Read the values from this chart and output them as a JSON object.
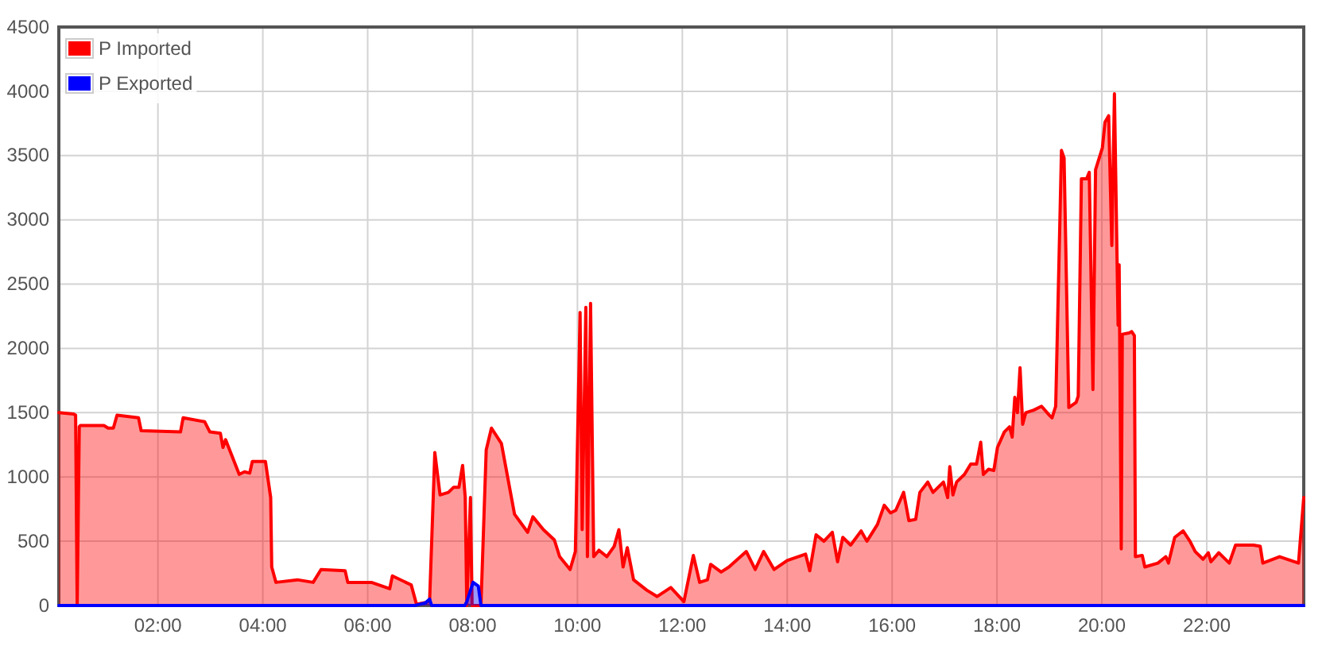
{
  "chart_data": {
    "type": "area",
    "xlim": [
      0.11,
      23.85
    ],
    "xticks": [
      {
        "value": 2,
        "label": "02:00"
      },
      {
        "value": 4,
        "label": "04:00"
      },
      {
        "value": 6,
        "label": "06:00"
      },
      {
        "value": 8,
        "label": "08:00"
      },
      {
        "value": 10,
        "label": "10:00"
      },
      {
        "value": 12,
        "label": "12:00"
      },
      {
        "value": 14,
        "label": "14:00"
      },
      {
        "value": 16,
        "label": "16:00"
      },
      {
        "value": 18,
        "label": "18:00"
      },
      {
        "value": 20,
        "label": "20:00"
      },
      {
        "value": 22,
        "label": "22:00"
      }
    ],
    "ylim": [
      0,
      4500
    ],
    "yticks": [
      0,
      500,
      1000,
      1500,
      2000,
      2500,
      3000,
      3500,
      4000,
      4500
    ],
    "grid": true,
    "legend": "top left",
    "marker": "none",
    "line_style": "solid",
    "series": [
      {
        "name": "P Imported",
        "color": "#ff0000",
        "x": [
          0.11,
          0.39,
          0.43,
          0.46,
          0.5,
          0.52,
          0.97,
          1.05,
          1.15,
          1.22,
          1.63,
          1.68,
          2.43,
          2.48,
          2.89,
          2.99,
          3.19,
          3.24,
          3.29,
          3.55,
          3.65,
          3.75,
          3.8,
          4.05,
          4.15,
          4.17,
          4.25,
          4.66,
          4.96,
          5.11,
          5.57,
          5.62,
          6.07,
          6.42,
          6.47,
          6.83,
          6.93,
          7.18,
          7.28,
          7.38,
          7.54,
          7.64,
          7.74,
          7.81,
          7.86,
          7.89,
          7.96,
          7.99,
          8.16,
          8.26,
          8.36,
          8.55,
          8.8,
          9.05,
          9.15,
          9.35,
          9.56,
          9.66,
          9.86,
          9.96,
          10.05,
          10.09,
          10.16,
          10.19,
          10.25,
          10.31,
          10.41,
          10.56,
          10.7,
          10.79,
          10.87,
          10.95,
          11.07,
          11.32,
          11.52,
          11.78,
          12.03,
          12.21,
          12.33,
          12.48,
          12.54,
          12.74,
          12.89,
          13.22,
          13.39,
          13.55,
          13.75,
          14.0,
          14.35,
          14.43,
          14.55,
          14.7,
          14.86,
          14.96,
          15.06,
          15.21,
          15.41,
          15.52,
          15.72,
          15.85,
          15.97,
          16.07,
          16.22,
          16.32,
          16.45,
          16.53,
          16.68,
          16.78,
          16.98,
          17.06,
          17.1,
          17.16,
          17.23,
          17.38,
          17.5,
          17.61,
          17.69,
          17.74,
          17.84,
          17.94,
          18.01,
          18.14,
          18.24,
          18.29,
          18.34,
          18.39,
          18.44,
          18.49,
          18.55,
          18.7,
          18.85,
          19.0,
          19.05,
          19.12,
          19.23,
          19.28,
          19.37,
          19.51,
          19.55,
          19.61,
          19.71,
          19.76,
          19.83,
          19.88,
          20.01,
          20.06,
          20.13,
          20.19,
          20.24,
          20.31,
          20.33,
          20.37,
          20.39,
          20.52,
          20.57,
          20.62,
          20.64,
          20.77,
          20.82,
          21.07,
          21.22,
          21.27,
          21.39,
          21.55,
          21.68,
          21.78,
          21.93,
          22.03,
          22.08,
          22.23,
          22.43,
          22.55,
          22.89,
          23.02,
          23.07,
          23.39,
          23.75,
          23.85
        ],
        "values": [
          1500,
          1490,
          1480,
          0,
          1390,
          1400,
          1400,
          1380,
          1380,
          1480,
          1460,
          1360,
          1350,
          1460,
          1430,
          1350,
          1340,
          1230,
          1290,
          1020,
          1040,
          1030,
          1120,
          1120,
          840,
          300,
          180,
          200,
          180,
          280,
          270,
          180,
          180,
          130,
          230,
          160,
          10,
          30,
          1190,
          860,
          880,
          920,
          920,
          1090,
          840,
          0,
          840,
          0,
          0,
          1210,
          1380,
          1260,
          710,
          570,
          690,
          590,
          510,
          380,
          280,
          420,
          2280,
          590,
          2320,
          380,
          2350,
          380,
          430,
          380,
          460,
          590,
          300,
          450,
          200,
          120,
          70,
          140,
          30,
          390,
          180,
          200,
          320,
          260,
          300,
          420,
          280,
          420,
          280,
          350,
          400,
          270,
          550,
          500,
          570,
          340,
          530,
          470,
          580,
          500,
          630,
          780,
          720,
          740,
          880,
          660,
          670,
          880,
          960,
          880,
          960,
          840,
          1080,
          860,
          960,
          1020,
          1100,
          1100,
          1270,
          1020,
          1060,
          1050,
          1230,
          1350,
          1390,
          1310,
          1620,
          1500,
          1850,
          1410,
          1500,
          1520,
          1550,
          1480,
          1460,
          1550,
          3540,
          3480,
          1540,
          1580,
          1630,
          3320,
          3320,
          3370,
          1680,
          3390,
          3560,
          3760,
          3810,
          2800,
          3980,
          2180,
          2650,
          440,
          2110,
          2120,
          2130,
          2100,
          380,
          390,
          300,
          330,
          380,
          330,
          530,
          580,
          500,
          420,
          360,
          410,
          340,
          410,
          330,
          470,
          470,
          460,
          330,
          380,
          330,
          840
        ]
      },
      {
        "name": "P Exported",
        "color": "#0000ff",
        "x": [
          0.11,
          6.9,
          7.0,
          7.1,
          7.18,
          7.22,
          7.85,
          7.89,
          8.01,
          8.11,
          8.16,
          23.85
        ],
        "values": [
          0,
          0,
          10,
          20,
          50,
          0,
          0,
          30,
          180,
          150,
          0,
          0
        ]
      }
    ]
  }
}
